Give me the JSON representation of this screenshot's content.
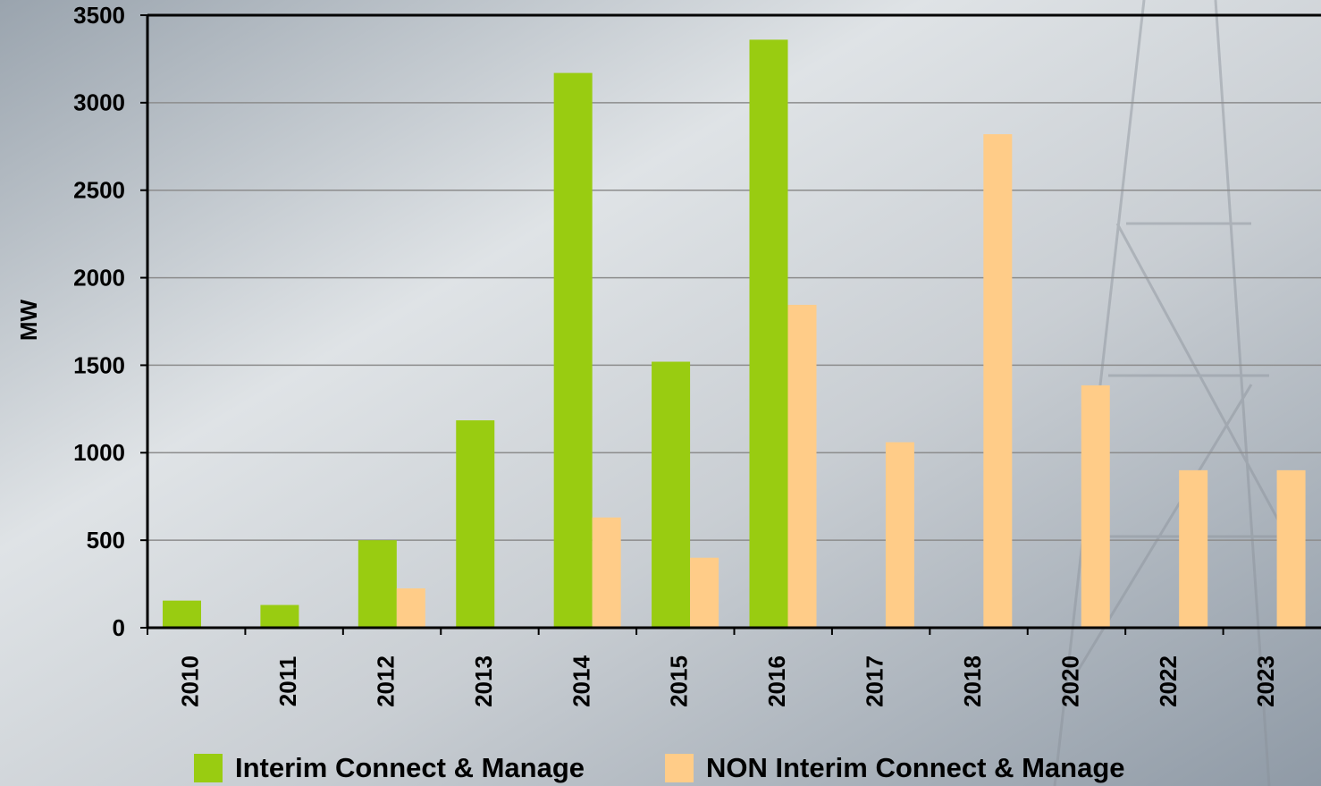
{
  "chart_data": {
    "type": "bar",
    "y_label": "MW",
    "categories": [
      "2010",
      "2011",
      "2012",
      "2013",
      "2014",
      "2015",
      "2016",
      "2017",
      "2018",
      "2020",
      "2022",
      "2023"
    ],
    "series": [
      {
        "name": "Interim Connect & Manage",
        "color": "#99cc11",
        "values": [
          155,
          130,
          500,
          1185,
          3170,
          1520,
          3360,
          0,
          0,
          0,
          0,
          0
        ]
      },
      {
        "name": "NON Interim Connect & Manage",
        "color": "#ffcc88",
        "values": [
          0,
          0,
          225,
          0,
          630,
          400,
          1845,
          1060,
          2820,
          1385,
          900,
          900
        ]
      }
    ],
    "ylim": [
      0,
      3500
    ],
    "yticks": [
      0,
      500,
      1000,
      1500,
      2000,
      2500,
      3000,
      3500
    ],
    "grid": true,
    "legend": "bottom"
  }
}
